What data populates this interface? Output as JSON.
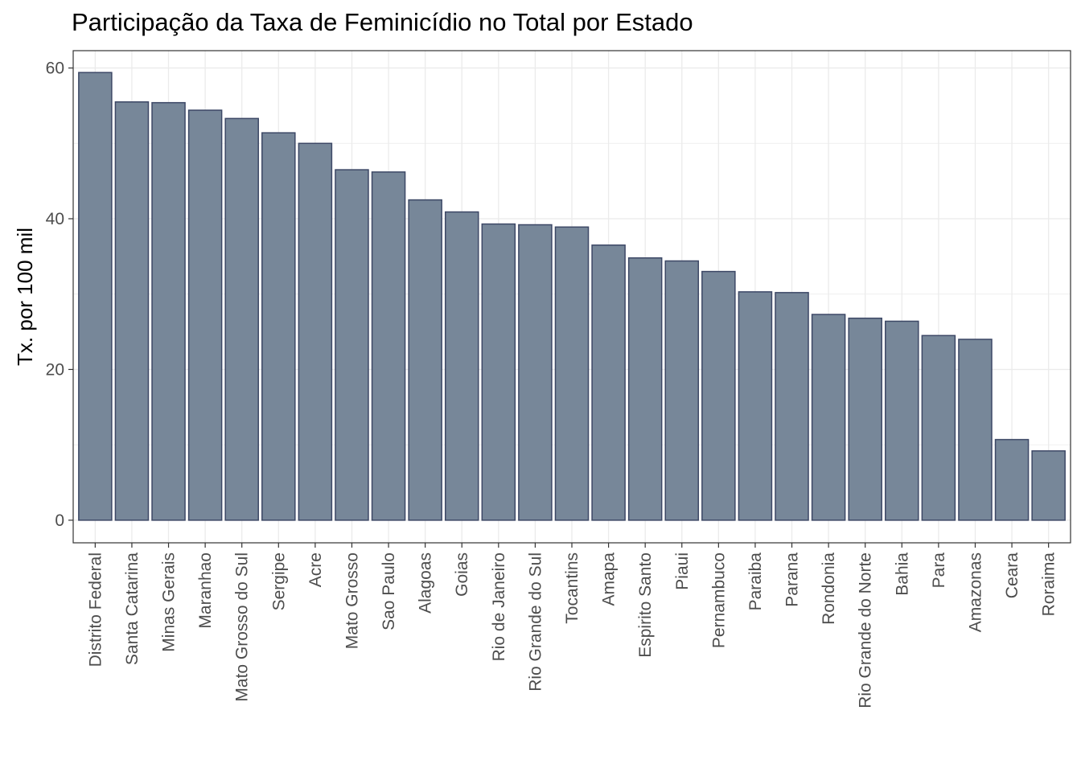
{
  "chart_data": {
    "type": "bar",
    "title": "Participação da Taxa de Feminicídio no Total por Estado",
    "xlabel": "",
    "ylabel": "Tx. por 100 mil",
    "ylim": [
      -3,
      62.3
    ],
    "y_ticks": [
      0,
      20,
      40,
      60
    ],
    "grid": true,
    "legend": "none",
    "colors": {
      "bar_fill": "#778799",
      "bar_stroke": "#3d4866",
      "grid": "#ebebeb",
      "panel_border": "#333333"
    },
    "categories": [
      "Distrito Federal",
      "Santa Catarina",
      "Minas Gerais",
      "Maranhao",
      "Mato Grosso do Sul",
      "Sergipe",
      "Acre",
      "Mato Grosso",
      "Sao Paulo",
      "Alagoas",
      "Goias",
      "Rio de Janeiro",
      "Rio Grande do Sul",
      "Tocantins",
      "Amapa",
      "Espirito Santo",
      "Piaui",
      "Pernambuco",
      "Paraiba",
      "Parana",
      "Rondonia",
      "Rio Grande do Norte",
      "Bahia",
      "Para",
      "Amazonas",
      "Ceara",
      "Roraima"
    ],
    "values": [
      59.4,
      55.5,
      55.4,
      54.4,
      53.3,
      51.4,
      50.0,
      46.5,
      46.2,
      42.5,
      40.9,
      39.3,
      39.2,
      38.9,
      36.5,
      34.8,
      34.4,
      33.0,
      30.3,
      30.2,
      27.3,
      26.8,
      26.4,
      24.5,
      24.0,
      10.7,
      9.2
    ]
  }
}
